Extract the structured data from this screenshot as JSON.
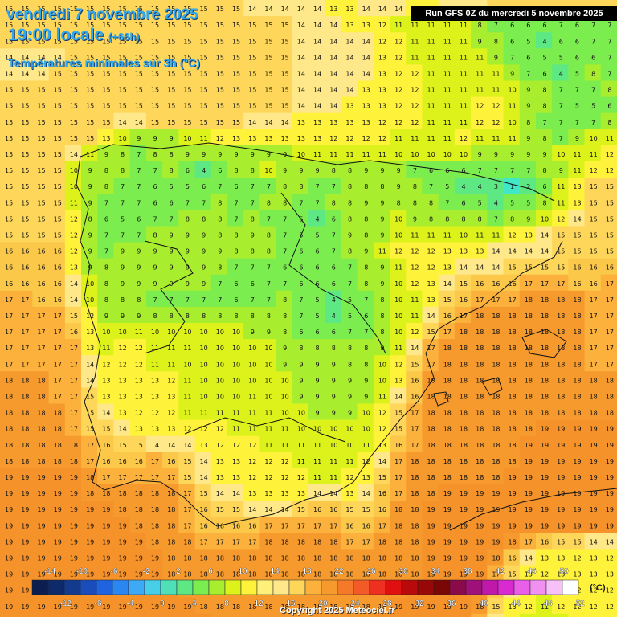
{
  "header": {
    "date": "vendredi 7 novembre 2025",
    "time": "19:00 locale",
    "offset": "(+66h)",
    "subtitle": "Températures minimales sur 3h (°C)"
  },
  "run_label": "Run GFS 0Z du mercredi 5 novembre 2025",
  "copyright": "Copyright 2025 Meteociel.fr",
  "legend": {
    "unit": "(°C)",
    "upper_ticks": [
      "-14",
      "-10",
      "-6",
      "-2",
      "2",
      "6",
      "10",
      "14",
      "18",
      "22",
      "26",
      "30",
      "34",
      "38",
      "42",
      "46",
      "50"
    ],
    "lower_ticks": [
      "-12",
      "-8",
      "-4",
      "0",
      "4",
      "8",
      "12",
      "16",
      "20",
      "24",
      "28",
      "32",
      "36",
      "40",
      "44",
      "48",
      "52"
    ],
    "colors": [
      "#0b1e4f",
      "#0f2a6b",
      "#133a8c",
      "#1a4dba",
      "#1f63e0",
      "#2a86f0",
      "#3eaaf5",
      "#47cfe8",
      "#4fe0b8",
      "#5de884",
      "#7ced4e",
      "#a8ee2e",
      "#dcf21a",
      "#fff23a",
      "#fff07a",
      "#ffe88a",
      "#fdd65a",
      "#fbb13c",
      "#f69a2e",
      "#f47a2a",
      "#f25a28",
      "#ee3020",
      "#e01010",
      "#b80a0a",
      "#980808",
      "#7a0606",
      "#8a0a4a",
      "#a0107a",
      "#c018a8",
      "#d82ad0",
      "#e860e8",
      "#f090f0",
      "#f8c0f8",
      "#ffffff"
    ]
  },
  "colors": {
    "title": "#2fa8f0",
    "ocean": "#f7a030",
    "land_warm": "#ffe060",
    "cool": "#7cee4e",
    "cold": "#40e8c8"
  },
  "values_grid_note": "",
  "grid": {
    "rows": [
      "15 15 15 15 15 15 15 15 15 15 15 15 15 15 15 14 14 14 14 14 13 13 14 14 14 13 13 14 14 14 15 15 15 15 15 15 15 15",
      "15 15 15 15 15 15 15 15 15 15 15 15 15 15 15 15 15 15 14 14 14 13 13 12 11 11 11 11 11 8 7 6 6 6 7 6 7 7",
      "15 15 15 15 15 15 15 15 15 15 15 15 15 15 15 15 15 15 14 14 14 14 14 12 12 11 11 11 11 9 8 6 5 4 6 6 7 7",
      "14 14 14 14 15 15 15 15 15 15 15 15 15 15 15 15 15 15 14 14 14 14 14 13 12 11 11 11 11 11 9 7 6 5 5 6 6 7",
      "14 14 14 15 15 15 15 15 15 15 15 15 15 15 15 15 15 15 14 14 14 14 14 13 12 12 11 11 11 11 11 9 7 6 4 5 8 7",
      "15 15 15 15 15 15 15 15 15 15 15 15 15 15 15 15 15 15 14 14 14 14 13 13 12 12 11 11 11 11 11 10 9 8 7 7 7 8",
      "15 15 15 15 15 15 15 15 15 15 15 15 15 15 15 15 15 15 14 14 14 13 13 13 12 12 11 11 11 12 12 11 9 8 7 5 5 6",
      "15 15 15 15 15 15 15 14 14 15 15 15 15 15 15 14 14 14 13 13 13 13 13 12 12 12 11 11 11 12 12 10 8 7 7 7 7 8",
      "15 15 15 15 15 15 13 10 9 9 9 10 11 12 13 13 13 13 13 13 12 12 12 12 11 11 11 11 12 11 11 11 9 8 7 9 10 11",
      "15 15 15 15 14 11 9 8 7 8 8 9 9 9 9 9 9 9 10 11 11 11 11 11 10 10 10 10 10 9 9 9 9 9 10 11 11 12",
      "15 15 15 15 10 9 8 8 7 7 8 6 4 6 8 8 10 9 9 9 8 8 9 9 9 7 6 6 6 7 7 7 7 8 9 11 12 12",
      "15 15 15 15 10 9 8 7 7 6 5 5 6 7 6 7 7 8 8 7 7 8 8 8 9 8 7 5 4 4 3 1 2 6 11 13 15 15",
      "15 15 15 15 11 9 7 7 7 6 6 7 7 8 7 7 8 8 7 7 8 8 9 9 8 8 8 7 6 5 4 5 5 8 11 13 15 15",
      "15 15 15 15 12 8 6 5 6 7 7 8 8 8 7 8 7 7 5 4 6 8 8 9 10 9 8 8 8 8 7 8 9 10 12 14 15 15",
      "15 15 15 15 12 9 7 7 7 8 9 9 9 8 8 9 8 7 5 5 7 9 8 9 10 11 11 11 10 11 11 12 13 14 15 15 15 15",
      "16 16 16 16 12 9 7 9 9 9 9 9 9 9 8 8 8 7 6 6 7 8 9 11 12 12 12 13 13 13 14 14 14 14 15 15 15 15",
      "16 16 16 16 13 9 8 9 9 9 9 9 9 8 7 7 7 6 6 6 6 7 8 9 11 12 12 13 14 14 14 15 15 15 15 16 16 16",
      "16 16 16 16 14 10 8 9 9 9 9 9 9 7 6 6 7 7 6 6 6 7 8 9 10 12 13 14 15 16 16 16 17 17 17 16 16 17",
      "17 17 16 16 14 10 8 8 8 7 7 7 7 7 6 7 7 8 7 5 4 5 7 8 10 11 13 15 16 17 17 17 18 18 18 18 17 17",
      "17 17 17 17 15 12 9 9 9 8 8 8 8 8 8 8 8 8 7 5 4 5 6 8 10 11 14 16 17 18 18 18 18 18 18 18 17 17",
      "17 17 17 17 16 13 10 10 11 10 10 10 10 10 10 9 9 8 6 6 6 7 7 8 10 12 15 17 18 18 18 18 18 18 18 18 17 17",
      "17 17 17 17 17 13 11 12 12 11 11 11 10 10 10 10 10 9 8 8 8 8 8 9 11 14 17 18 18 18 18 18 18 18 18 18 17 17",
      "17 17 17 17 17 14 12 12 12 11 11 10 10 10 10 10 10 9 9 9 9 8 8 10 12 15 17 18 18 18 18 18 18 18 18 18 17 17",
      "18 18 18 17 17 14 13 13 13 13 12 11 10 10 10 10 10 10 9 9 9 9 9 10 13 16 18 18 18 18 18 18 18 18 18 18 18 18",
      "18 18 18 17 17 15 13 13 13 13 13 11 10 10 10 11 10 10 9 9 9 9 9 11 14 16 18 18 18 18 18 18 18 18 18 18 18 18",
      "18 18 18 18 17 15 14 13 12 12 12 11 11 11 11 11 11 10 10 9 9 9 10 12 15 17 18 18 18 18 18 18 18 18 18 18 18 18",
      "18 18 18 18 17 15 15 14 13 13 13 12 12 12 11 11 11 11 10 10 10 10 10 12 15 17 18 18 18 18 18 18 18 19 19 19 19 19",
      "18 18 18 18 18 17 16 15 15 14 14 14 13 12 12 12 11 11 11 11 10 10 11 13 16 17 18 18 18 18 18 18 19 19 19 19 19 19",
      "18 18 18 18 18 17 16 16 16 17 16 15 14 13 13 12 12 12 11 11 11 11 12 14 17 18 18 18 18 18 18 18 19 19 19 19 19 19",
      "19 19 19 19 19 18 17 17 17 17 17 15 14 13 13 12 12 12 12 11 11 12 13 15 17 18 18 18 18 18 18 19 19 19 19 19 19 19",
      "19 19 19 19 19 18 18 18 18 18 18 17 15 14 14 13 13 13 13 14 14 13 14 16 17 18 18 19 19 19 19 19 19 19 19 19 19 19",
      "19 19 19 19 19 19 19 18 18 18 18 17 16 15 15 14 14 14 15 16 16 15 15 16 18 18 19 19 19 19 19 19 19 19 19 19 19 19",
      "19 19 19 19 19 19 19 19 18 18 18 17 16 16 16 16 17 17 17 17 17 16 16 17 18 18 19 19 19 19 19 19 19 19 19 19 19 19",
      "19 19 19 19 19 19 19 19 19 18 18 18 17 17 17 17 18 18 18 18 18 17 17 18 18 18 19 19 19 19 19 18 17 16 15 15 14 14",
      "19 19 19 19 19 19 19 19 19 19 18 18 18 18 18 18 18 18 18 18 18 18 18 18 18 18 19 19 19 19 18 16 14 13 13 12 13 12",
      "19 19 19 19 19 19 19 19 19 19 18 18 18 18 18 18 18 18 18 18 18 18 18 18 18 18 19 19 19 19 17 15 13 12 13 13 13 13",
      "19 19 19 19 19 19 19 19 19 19 19 18 18 18 18 18 18 18 18 18 18 18 18 18 18 19 19 19 19 18 16 14 12 11 12 12 12 12",
      "19 19 19 19 19 19 19 19 19 19 19 19 18 18 18 18 18 18 18 18 18 18 18 18 19 19 19 19 19 18 15 13 12 11 12 12 12 12",
      "19 19 19 19 19 19 19 19 19 19 19 19 19 18 18 18 18 18 18 18 18 18 18 19 19 19 19 19 19 17 14 12 11 11 11 12 12 12"
    ]
  }
}
